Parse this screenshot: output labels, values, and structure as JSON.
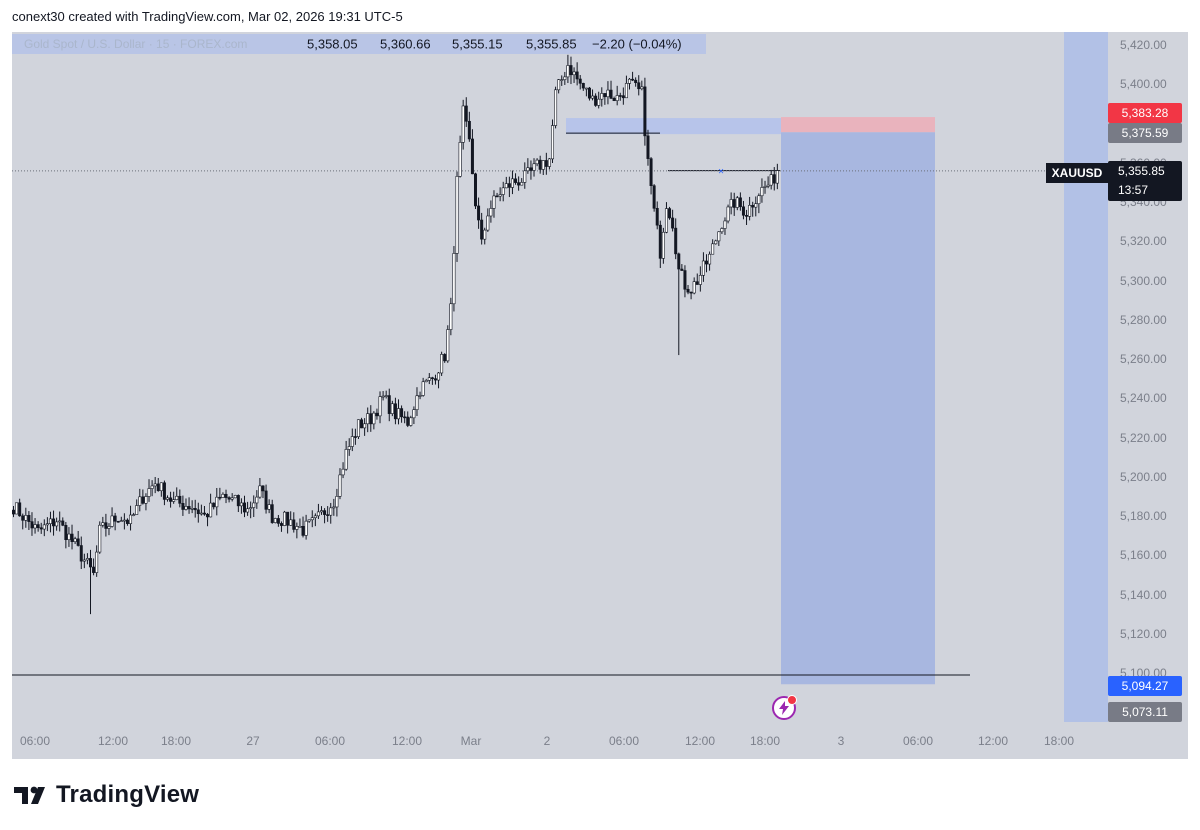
{
  "header": {
    "attribution": "conext30 created with TradingView.com, Mar 02, 2026 19:31 UTC-5"
  },
  "legend": {
    "instrument": "Gold Spot / U.S. Dollar · 15 · FOREX.com",
    "open": "5,358.05",
    "high": "5,360.66",
    "low": "5,355.15",
    "close": "5,355.85",
    "change": "−2.20 (−0.04%)"
  },
  "symbol_tag": "XAUUSD",
  "current_price": {
    "value": "5,355.85",
    "countdown": "13:57",
    "color": "#131722"
  },
  "price_labels": [
    {
      "name": "stop-loss-label",
      "text": "5,383.28",
      "value": 5383.28,
      "color": "#f23645"
    },
    {
      "name": "entry-label",
      "text": "5,375.59",
      "value": 5375.59,
      "color": "#787b86"
    },
    {
      "name": "target-label",
      "text": "5,094.27",
      "value": 5094.27,
      "color": "#2962ff"
    },
    {
      "name": "scale-bottom-label",
      "text": "5,073.11",
      "value": 5073.11,
      "color": "#787b86"
    }
  ],
  "brand": {
    "name": "TradingView"
  },
  "colors": {
    "up_candle": "#ffffff",
    "down_candle": "#131722",
    "profit_zone": "#a8b7e0",
    "stop_zone": "#e9b3bd",
    "plot_background": "#d1d4dc"
  },
  "chart_data": {
    "type": "candlestick",
    "symbol": "XAUUSD",
    "timeframe": "15",
    "x_ticks": [
      "06:00",
      "12:00",
      "18:00",
      "27",
      "06:00",
      "12:00",
      "Mar",
      "2",
      "06:00",
      "12:00",
      "18:00",
      "3",
      "06:00",
      "12:00",
      "18:00"
    ],
    "y_ticks": [
      5100,
      5120,
      5140,
      5160,
      5180,
      5200,
      5220,
      5240,
      5260,
      5280,
      5300,
      5320,
      5340,
      5360,
      5380,
      5400,
      5420
    ],
    "y_tick_labels": [
      "5,100.00",
      "5,120.00",
      "5,140.00",
      "5,160.00",
      "5,180.00",
      "5,200.00",
      "5,220.00",
      "5,240.00",
      "5,260.00",
      "5,280.00",
      "5,300.00",
      "5,320.00",
      "5,340.00",
      "5,360.00",
      "5,380.00",
      "5,400.00",
      "5,420.00"
    ],
    "ylim": [
      5073,
      5424
    ],
    "price_path": [
      [
        0,
        5185
      ],
      [
        8,
        5172
      ],
      [
        14,
        5178
      ],
      [
        20,
        5165
      ],
      [
        24,
        5155
      ],
      [
        26,
        5150
      ],
      [
        28,
        5172
      ],
      [
        34,
        5180
      ],
      [
        38,
        5177
      ],
      [
        42,
        5190
      ],
      [
        46,
        5197
      ],
      [
        52,
        5187
      ],
      [
        58,
        5185
      ],
      [
        62,
        5180
      ],
      [
        68,
        5190
      ],
      [
        72,
        5187
      ],
      [
        76,
        5183
      ],
      [
        80,
        5193
      ],
      [
        84,
        5180
      ],
      [
        90,
        5177
      ],
      [
        94,
        5173
      ],
      [
        98,
        5177
      ],
      [
        104,
        5188
      ],
      [
        108,
        5212
      ],
      [
        112,
        5226
      ],
      [
        116,
        5230
      ],
      [
        120,
        5240
      ],
      [
        124,
        5232
      ],
      [
        128,
        5228
      ],
      [
        132,
        5245
      ],
      [
        136,
        5250
      ],
      [
        140,
        5262
      ],
      [
        142,
        5285
      ],
      [
        144,
        5350
      ],
      [
        146,
        5385
      ],
      [
        148,
        5370
      ],
      [
        150,
        5340
      ],
      [
        152,
        5318
      ],
      [
        154,
        5335
      ],
      [
        158,
        5345
      ],
      [
        162,
        5350
      ],
      [
        166,
        5352
      ],
      [
        170,
        5358
      ],
      [
        174,
        5362
      ],
      [
        176,
        5395
      ],
      [
        180,
        5410
      ],
      [
        184,
        5400
      ],
      [
        188,
        5392
      ],
      [
        192,
        5396
      ],
      [
        196,
        5393
      ],
      [
        200,
        5400
      ],
      [
        204,
        5395
      ],
      [
        206,
        5360
      ],
      [
        208,
        5335
      ],
      [
        210,
        5315
      ],
      [
        212,
        5340
      ],
      [
        214,
        5330
      ],
      [
        216,
        5305
      ],
      [
        218,
        5298
      ],
      [
        220,
        5296
      ],
      [
        222,
        5300
      ],
      [
        226,
        5312
      ],
      [
        230,
        5330
      ],
      [
        234,
        5340
      ],
      [
        238,
        5335
      ],
      [
        242,
        5345
      ],
      [
        246,
        5350
      ],
      [
        248,
        5356
      ]
    ],
    "wick_extremes": {
      "low": 5130,
      "high": 5415
    },
    "annotations": {
      "position_tool": {
        "direction": "short",
        "entry": 5375.59,
        "stop_loss": 5383.28,
        "take_profit": 5094.27
      },
      "horizontal_lines": [
        5375.59,
        5356.0,
        5099.0
      ]
    }
  }
}
